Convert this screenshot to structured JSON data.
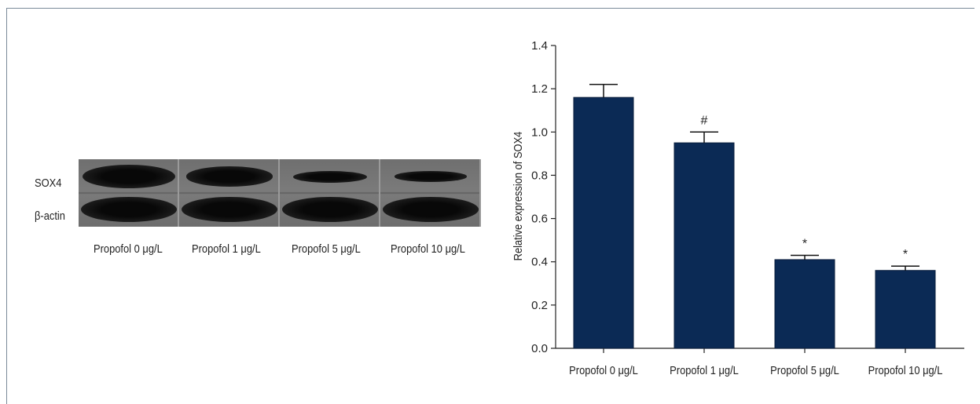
{
  "blot": {
    "row_labels": [
      "SOX4",
      "β-actin"
    ],
    "lane_labels": [
      "Propofol 0 μg/L",
      "Propofol 1 μg/L",
      "Propofol 5 μg/L",
      "Propofol 10 μg/L"
    ],
    "sox4_intensity": [
      1.0,
      0.85,
      0.5,
      0.45
    ],
    "actin_intensity": [
      1.0,
      1.0,
      1.0,
      1.0
    ]
  },
  "chart_data": {
    "type": "bar",
    "categories": [
      "Propofol 0 μg/L",
      "Propofol 1 μg/L",
      "Propofol 5 μg/L",
      "Propofol 10 μg/L"
    ],
    "values": [
      1.16,
      0.95,
      0.41,
      0.36
    ],
    "errors": [
      0.06,
      0.05,
      0.02,
      0.02
    ],
    "annotations": [
      "",
      "#",
      "*",
      "*"
    ],
    "title": "",
    "xlabel": "",
    "ylabel": "Relative expression of SOX4",
    "ylim": [
      0,
      1.4
    ],
    "yticks": [
      "0.0",
      "0.2",
      "0.4",
      "0.6",
      "0.8",
      "1.0",
      "1.2",
      "1.4"
    ],
    "grid": false,
    "bar_color": "#0b2a55"
  }
}
